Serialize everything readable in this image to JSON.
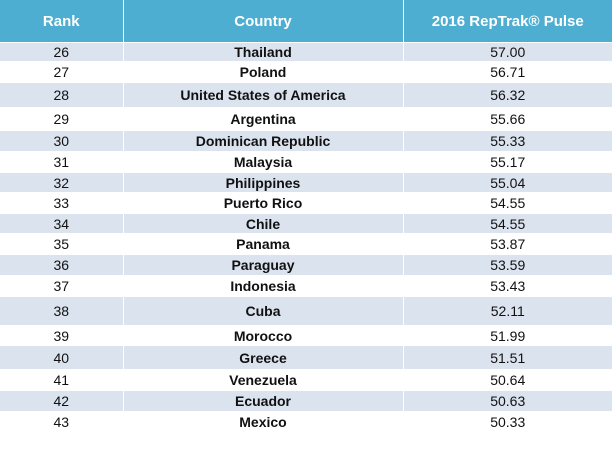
{
  "table": {
    "headers": [
      "Rank",
      "Country",
      "2016 RepTrak® Pulse"
    ],
    "rows": [
      {
        "rank": "26",
        "country": "Thailand",
        "score": "57.00"
      },
      {
        "rank": "27",
        "country": "Poland",
        "score": "56.71"
      },
      {
        "rank": "28",
        "country": "United States of America",
        "score": "56.32"
      },
      {
        "rank": "29",
        "country": "Argentina",
        "score": "55.66"
      },
      {
        "rank": "30",
        "country": "Dominican Republic",
        "score": "55.33"
      },
      {
        "rank": "31",
        "country": "Malaysia",
        "score": "55.17"
      },
      {
        "rank": "32",
        "country": "Philippines",
        "score": "55.04"
      },
      {
        "rank": "33",
        "country": "Puerto Rico",
        "score": "54.55"
      },
      {
        "rank": "34",
        "country": "Chile",
        "score": "54.55"
      },
      {
        "rank": "35",
        "country": "Panama",
        "score": "53.87"
      },
      {
        "rank": "36",
        "country": "Paraguay",
        "score": "53.59"
      },
      {
        "rank": "37",
        "country": "Indonesia",
        "score": "53.43"
      },
      {
        "rank": "38",
        "country": "Cuba",
        "score": "52.11"
      },
      {
        "rank": "39",
        "country": "Morocco",
        "score": "51.99"
      },
      {
        "rank": "40",
        "country": "Greece",
        "score": "51.51"
      },
      {
        "rank": "41",
        "country": "Venezuela",
        "score": "50.64"
      },
      {
        "rank": "42",
        "country": "Ecuador",
        "score": "50.63"
      },
      {
        "rank": "43",
        "country": "Mexico",
        "score": "50.33"
      }
    ]
  }
}
